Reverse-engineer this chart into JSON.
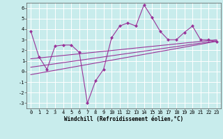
{
  "xlabel": "Windchill (Refroidissement éolien,°C)",
  "bg_color": "#c8ecec",
  "line_color": "#993399",
  "xlim": [
    -0.5,
    23.5
  ],
  "ylim": [
    -3.5,
    6.5
  ],
  "yticks": [
    -3,
    -2,
    -1,
    0,
    1,
    2,
    3,
    4,
    5,
    6
  ],
  "xticks": [
    0,
    1,
    2,
    3,
    4,
    5,
    6,
    7,
    8,
    9,
    10,
    11,
    12,
    13,
    14,
    15,
    16,
    17,
    18,
    19,
    20,
    21,
    22,
    23
  ],
  "main_series_x": [
    0,
    1,
    2,
    3,
    4,
    5,
    6,
    7,
    8,
    9,
    10,
    11,
    12,
    13,
    14,
    15,
    16,
    17,
    18,
    19,
    20,
    21,
    22,
    23
  ],
  "main_series_y": [
    3.8,
    1.4,
    0.2,
    2.4,
    2.5,
    2.5,
    1.8,
    -3.0,
    -0.9,
    0.2,
    3.2,
    4.3,
    4.6,
    4.3,
    6.3,
    5.1,
    3.8,
    3.0,
    3.0,
    3.7,
    4.3,
    3.0,
    3.0,
    2.8
  ],
  "trend1_x": [
    0,
    23
  ],
  "trend1_y": [
    1.2,
    3.0
  ],
  "trend2_x": [
    0,
    23
  ],
  "trend2_y": [
    0.4,
    2.9
  ],
  "trend3_x": [
    0,
    23
  ],
  "trend3_y": [
    -0.3,
    2.85
  ]
}
